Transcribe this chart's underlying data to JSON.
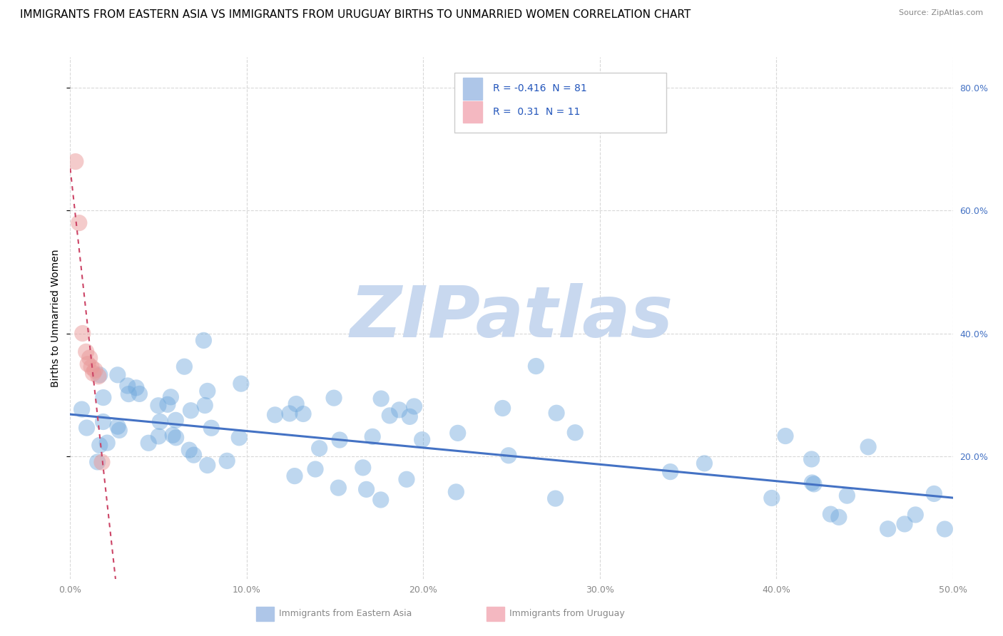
{
  "title": "IMMIGRANTS FROM EASTERN ASIA VS IMMIGRANTS FROM URUGUAY BIRTHS TO UNMARRIED WOMEN CORRELATION CHART",
  "source": "Source: ZipAtlas.com",
  "xlabel_left": "Immigrants from Eastern Asia",
  "xlabel_right": "Immigrants from Uruguay",
  "ylabel": "Births to Unmarried Women",
  "watermark": "ZIPatlas",
  "blue_R": -0.416,
  "blue_N": 81,
  "pink_R": 0.31,
  "pink_N": 11,
  "xlim": [
    0.0,
    0.5
  ],
  "ylim": [
    0.0,
    0.85
  ],
  "x_ticks": [
    0.0,
    0.1,
    0.2,
    0.3,
    0.4,
    0.5
  ],
  "y_ticks_right": [
    0.2,
    0.4,
    0.6,
    0.8
  ],
  "blue_scatter_color": "#6fa8dc",
  "pink_scatter_color": "#ea9999",
  "blue_line_color": "#4472c4",
  "pink_line_color": "#cc4466",
  "background_color": "#ffffff",
  "grid_color": "#d8d8d8",
  "title_fontsize": 11,
  "axis_label_fontsize": 10,
  "watermark_color": "#c8d8ef",
  "watermark_fontsize": 72,
  "legend_blue_color": "#aec6e8",
  "legend_pink_color": "#f4b8c1",
  "legend_text_color": "#2255bb",
  "right_axis_color": "#4472c4",
  "scatter_size": 280,
  "scatter_alpha_blue": 0.45,
  "scatter_alpha_pink": 0.5
}
